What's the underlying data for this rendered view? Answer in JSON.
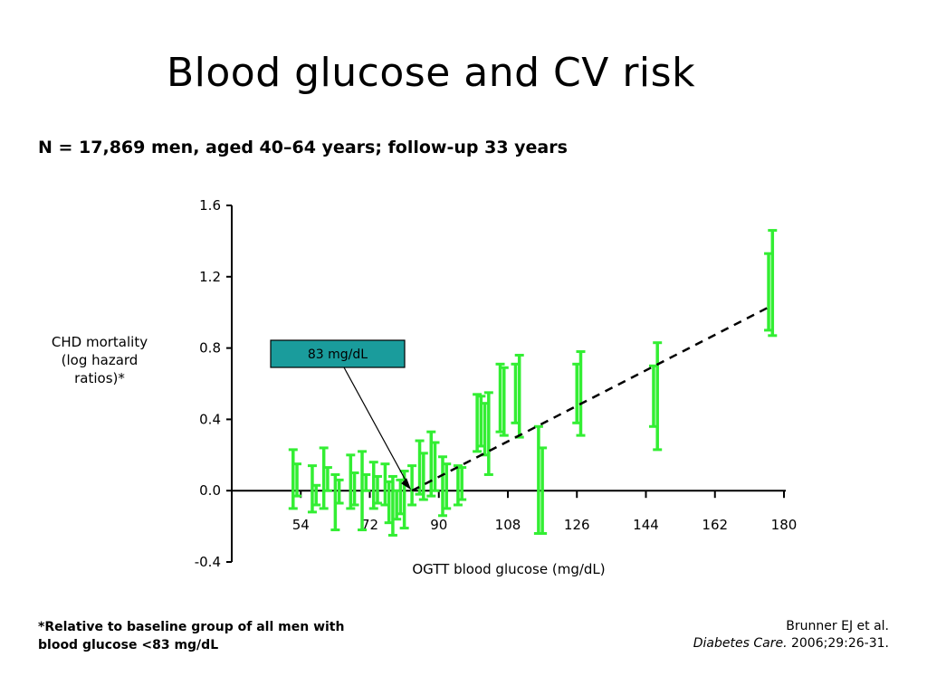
{
  "slide": {
    "title": "Blood glucose and CV risk",
    "subtitle": "N = 17,869 men, aged 40–64 years; follow-up 33 years",
    "ylabel_lines": [
      "CHD mortality",
      "(log hazard",
      "ratios)*"
    ],
    "footnote_lines": [
      "*Relative to baseline group of all men with",
      "blood glucose <83 mg/dL"
    ],
    "citation_line1": "Brunner EJ et al.",
    "citation_journal": "Diabetes Care.",
    "citation_rest": " 2006;29:26-31."
  },
  "chart_data": {
    "type": "scatter",
    "xlabel": "OGTT blood glucose (mg/dL)",
    "ylabel": "CHD mortality (log hazard ratios)*",
    "x_ticks": [
      54,
      72,
      90,
      108,
      126,
      144,
      162,
      180
    ],
    "y_ticks": [
      -0.4,
      0.0,
      0.4,
      0.8,
      1.2,
      1.6
    ],
    "y_tick_labels": [
      "-0.4",
      "0.0",
      "0.4",
      "0.8",
      "1.2",
      "1.6"
    ],
    "xlim": [
      36,
      180
    ],
    "ylim": [
      -0.4,
      1.6
    ],
    "grid": false,
    "series": [
      {
        "type": "errorbar",
        "color": "#33ee33",
        "points": [
          {
            "x": 52,
            "y": 0.05,
            "low": -0.1,
            "high": 0.23
          },
          {
            "x": 53,
            "y": 0.0,
            "low": -0.03,
            "high": 0.15
          },
          {
            "x": 57,
            "y": -0.05,
            "low": -0.12,
            "high": 0.14
          },
          {
            "x": 58,
            "y": 0.0,
            "low": -0.08,
            "high": 0.03
          },
          {
            "x": 60,
            "y": 0.03,
            "low": -0.1,
            "high": 0.24
          },
          {
            "x": 61,
            "y": 0.05,
            "low": 0.0,
            "high": 0.13
          },
          {
            "x": 63,
            "y": 0.0,
            "low": -0.22,
            "high": 0.09
          },
          {
            "x": 64,
            "y": 0.0,
            "low": -0.07,
            "high": 0.06
          },
          {
            "x": 67,
            "y": 0.0,
            "low": -0.1,
            "high": 0.2
          },
          {
            "x": 68,
            "y": 0.03,
            "low": -0.08,
            "high": 0.1
          },
          {
            "x": 70,
            "y": 0.0,
            "low": -0.22,
            "high": 0.22
          },
          {
            "x": 71,
            "y": 0.03,
            "low": 0.0,
            "high": 0.09
          },
          {
            "x": 73,
            "y": 0.0,
            "low": -0.1,
            "high": 0.16
          },
          {
            "x": 74,
            "y": -0.02,
            "low": -0.07,
            "high": 0.08
          },
          {
            "x": 76,
            "y": 0.0,
            "low": -0.08,
            "high": 0.15
          },
          {
            "x": 77,
            "y": 0.0,
            "low": -0.18,
            "high": 0.05
          },
          {
            "x": 78,
            "y": -0.05,
            "low": -0.25,
            "high": 0.08
          },
          {
            "x": 79,
            "y": -0.07,
            "low": -0.16,
            "high": 0.0
          },
          {
            "x": 80,
            "y": -0.02,
            "low": -0.13,
            "high": 0.06
          },
          {
            "x": 81,
            "y": -0.05,
            "low": -0.21,
            "high": 0.11
          },
          {
            "x": 83,
            "y": 0.0,
            "low": -0.08,
            "high": 0.14
          },
          {
            "x": 85,
            "y": 0.1,
            "low": -0.02,
            "high": 0.28
          },
          {
            "x": 86,
            "y": 0.1,
            "low": -0.05,
            "high": 0.21
          },
          {
            "x": 88,
            "y": 0.12,
            "low": -0.03,
            "high": 0.33
          },
          {
            "x": 89,
            "y": 0.13,
            "low": 0.0,
            "high": 0.27
          },
          {
            "x": 91,
            "y": 0.03,
            "low": -0.14,
            "high": 0.19
          },
          {
            "x": 92,
            "y": 0.03,
            "low": -0.1,
            "high": 0.15
          },
          {
            "x": 95,
            "y": 0.05,
            "low": -0.08,
            "high": 0.14
          },
          {
            "x": 96,
            "y": 0.03,
            "low": -0.05,
            "high": 0.13
          },
          {
            "x": 100,
            "y": 0.38,
            "low": 0.22,
            "high": 0.54
          },
          {
            "x": 101,
            "y": 0.38,
            "low": 0.25,
            "high": 0.53
          },
          {
            "x": 102,
            "y": 0.35,
            "low": 0.2,
            "high": 0.49
          },
          {
            "x": 103,
            "y": 0.3,
            "low": 0.09,
            "high": 0.55
          },
          {
            "x": 106,
            "y": 0.5,
            "low": 0.33,
            "high": 0.71
          },
          {
            "x": 107,
            "y": 0.5,
            "low": 0.31,
            "high": 0.69
          },
          {
            "x": 110,
            "y": 0.52,
            "low": 0.38,
            "high": 0.71
          },
          {
            "x": 111,
            "y": 0.52,
            "low": 0.3,
            "high": 0.76
          },
          {
            "x": 116,
            "y": 0.05,
            "low": -0.24,
            "high": 0.36
          },
          {
            "x": 117,
            "y": 0.05,
            "low": -0.24,
            "high": 0.24
          },
          {
            "x": 126,
            "y": 0.55,
            "low": 0.38,
            "high": 0.71
          },
          {
            "x": 127,
            "y": 0.55,
            "low": 0.31,
            "high": 0.78
          },
          {
            "x": 146,
            "y": 0.52,
            "low": 0.36,
            "high": 0.7
          },
          {
            "x": 147,
            "y": 0.52,
            "low": 0.23,
            "high": 0.83
          },
          {
            "x": 176,
            "y": 1.1,
            "low": 0.9,
            "high": 1.33
          },
          {
            "x": 177,
            "y": 1.15,
            "low": 0.87,
            "high": 1.46
          }
        ]
      },
      {
        "type": "trend",
        "style": "dashed",
        "color": "#000000",
        "points": [
          {
            "x": 83,
            "y": 0.0
          },
          {
            "x": 177,
            "y": 1.04
          }
        ]
      }
    ],
    "annotations": [
      {
        "text": "83 mg/dL",
        "box_color": "#1a9c9c",
        "arrow_to": {
          "x": 83,
          "y": 0.0
        }
      }
    ]
  }
}
